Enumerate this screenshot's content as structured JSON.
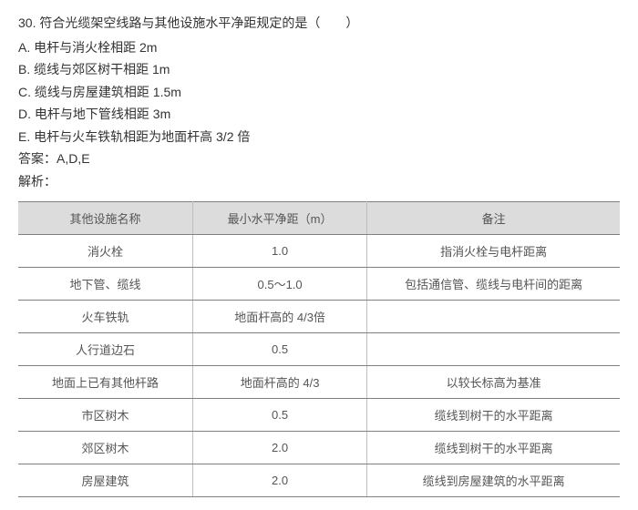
{
  "question": {
    "number": "30.",
    "stem": "符合光缆架空线路与其他设施水平净距规定的是（　　）",
    "options": [
      {
        "letter": "A.",
        "text": "电杆与消火栓相距 2m"
      },
      {
        "letter": "B.",
        "text": "缆线与郊区树干相距 1m"
      },
      {
        "letter": "C.",
        "text": "缆线与房屋建筑相距 1.5m"
      },
      {
        "letter": "D.",
        "text": "电杆与地下管线相距 3m"
      },
      {
        "letter": "E.",
        "text": "电杆与火车铁轨相距为地面杆高 3/2 倍"
      }
    ],
    "answer_label": "答案：",
    "answer_value": "A,D,E",
    "analysis_label": "解析："
  },
  "table": {
    "columns": [
      {
        "key": "name",
        "label": "其他设施名称",
        "class": "col-name"
      },
      {
        "key": "dist",
        "label": "最小水平净距（m）",
        "class": "col-dist"
      },
      {
        "key": "remark",
        "label": "备注",
        "class": "col-remark"
      }
    ],
    "rows": [
      {
        "name": "消火栓",
        "dist": "1.0",
        "remark": "指消火栓与电杆距离"
      },
      {
        "name": "地下管、缆线",
        "dist": "0.5～1.0",
        "remark": "包括通信管、缆线与电杆间的距离"
      },
      {
        "name": "火车铁轨",
        "dist": "地面杆高的 4/3倍",
        "remark": ""
      },
      {
        "name": "人行道边石",
        "dist": "0.5",
        "remark": ""
      },
      {
        "name": "地面上已有其他杆路",
        "dist": "地面杆高的 4/3",
        "remark": "以较长标高为基准"
      },
      {
        "name": "市区树木",
        "dist": "0.5",
        "remark": "缆线到树干的水平距离"
      },
      {
        "name": "郊区树木",
        "dist": "2.0",
        "remark": "缆线到树干的水平距离"
      },
      {
        "name": "房屋建筑",
        "dist": "2.0",
        "remark": "缆线到房屋建筑的水平距离"
      }
    ],
    "header_bg": "#dcdcdc",
    "border_color": "#808080",
    "row_text_color": "#555555",
    "fontsize": 13
  }
}
